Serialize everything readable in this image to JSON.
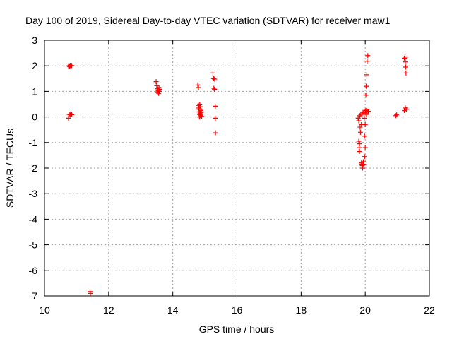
{
  "chart_data": {
    "type": "scatter",
    "title": "Day 100 of 2019, Sidereal Day-to-day VTEC variation (SDTVAR) for receiver maw1",
    "xlabel": "GPS time / hours",
    "ylabel": "SDTVAR / TECUs",
    "xlim": [
      10,
      22
    ],
    "ylim": [
      -7,
      3
    ],
    "xticks": [
      "10",
      "12",
      "14",
      "16",
      "18",
      "20",
      "22"
    ],
    "yticks": [
      "3",
      "2",
      "1",
      "0",
      "-1",
      "-2",
      "-3",
      "-4",
      "-5",
      "-6",
      "-7"
    ],
    "xtick_values": [
      10,
      12,
      14,
      16,
      18,
      20,
      22
    ],
    "ytick_values": [
      3,
      2,
      1,
      0,
      -1,
      -2,
      -3,
      -4,
      -5,
      -6,
      -7
    ],
    "grid": true,
    "marker": "+",
    "color": "#ff0000",
    "series": [
      {
        "name": "SDTVAR",
        "points": [
          [
            10.75,
            2.0
          ],
          [
            10.78,
            1.97
          ],
          [
            10.8,
            2.02
          ],
          [
            10.82,
            1.99
          ],
          [
            10.85,
            2.01
          ],
          [
            10.75,
            -0.05
          ],
          [
            10.77,
            0.1
          ],
          [
            10.8,
            0.08
          ],
          [
            10.82,
            0.12
          ],
          [
            10.85,
            0.09
          ],
          [
            11.42,
            -6.83
          ],
          [
            11.43,
            -6.9
          ],
          [
            13.48,
            1.38
          ],
          [
            13.5,
            1.22
          ],
          [
            13.51,
            1.05
          ],
          [
            13.52,
            0.98
          ],
          [
            13.53,
            1.1
          ],
          [
            13.55,
            1.02
          ],
          [
            13.56,
            0.92
          ],
          [
            13.57,
            1.15
          ],
          [
            13.58,
            1.0
          ],
          [
            13.6,
            1.08
          ],
          [
            14.78,
            1.25
          ],
          [
            14.8,
            1.15
          ],
          [
            14.8,
            0.45
          ],
          [
            14.81,
            0.35
          ],
          [
            14.82,
            0.3
          ],
          [
            14.82,
            0.2
          ],
          [
            14.83,
            0.1
          ],
          [
            14.83,
            0.0
          ],
          [
            14.84,
            0.5
          ],
          [
            14.85,
            0.4
          ],
          [
            14.85,
            0.15
          ],
          [
            14.86,
            0.05
          ],
          [
            14.87,
            0.3
          ],
          [
            14.88,
            0.25
          ],
          [
            14.88,
            0.08
          ],
          [
            14.89,
            0.18
          ],
          [
            14.9,
            0.02
          ],
          [
            15.25,
            1.72
          ],
          [
            15.27,
            1.5
          ],
          [
            15.28,
            1.12
          ],
          [
            15.3,
            1.48
          ],
          [
            15.3,
            1.08
          ],
          [
            15.32,
            0.42
          ],
          [
            15.32,
            -0.05
          ],
          [
            15.33,
            -0.62
          ],
          [
            19.78,
            -0.05
          ],
          [
            19.8,
            -0.15
          ],
          [
            19.8,
            -0.95
          ],
          [
            19.81,
            -1.2
          ],
          [
            19.82,
            -1.05
          ],
          [
            19.82,
            -1.35
          ],
          [
            19.83,
            0.05
          ],
          [
            19.84,
            -0.4
          ],
          [
            19.85,
            -0.6
          ],
          [
            19.86,
            0.1
          ],
          [
            19.88,
            -0.3
          ],
          [
            19.88,
            -1.8
          ],
          [
            19.9,
            0.12
          ],
          [
            19.9,
            -1.85
          ],
          [
            19.91,
            -1.9
          ],
          [
            19.92,
            -2.0
          ],
          [
            19.93,
            0.18
          ],
          [
            19.94,
            -1.75
          ],
          [
            19.95,
            -1.85
          ],
          [
            19.96,
            0.15
          ],
          [
            19.97,
            -0.05
          ],
          [
            19.98,
            -0.75
          ],
          [
            19.98,
            -1.55
          ],
          [
            20.0,
            0.2
          ],
          [
            20.0,
            -1.2
          ],
          [
            20.0,
            -0.3
          ],
          [
            20.02,
            0.85
          ],
          [
            20.02,
            0.25
          ],
          [
            20.03,
            1.2
          ],
          [
            20.04,
            0.1
          ],
          [
            20.05,
            1.65
          ],
          [
            20.05,
            0.3
          ],
          [
            20.06,
            2.18
          ],
          [
            20.08,
            2.4
          ],
          [
            20.08,
            0.2
          ],
          [
            20.1,
            0.22
          ],
          [
            20.95,
            0.05
          ],
          [
            20.98,
            0.08
          ],
          [
            21.22,
            2.3
          ],
          [
            21.24,
            2.35
          ],
          [
            21.25,
            2.15
          ],
          [
            21.26,
            1.95
          ],
          [
            21.27,
            1.72
          ],
          [
            21.22,
            0.25
          ],
          [
            21.25,
            0.35
          ],
          [
            21.28,
            0.3
          ]
        ]
      }
    ]
  }
}
